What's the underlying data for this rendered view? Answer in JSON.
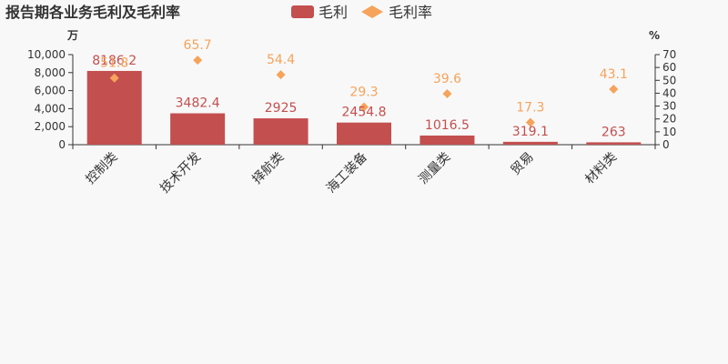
{
  "chart_data": {
    "type": "bar",
    "title": "报告期各业务毛利及毛利率",
    "categories": [
      "控制类",
      "技术开发",
      "择航类",
      "海工装备",
      "测量类",
      "贸易",
      "材料类"
    ],
    "series": [
      {
        "name": "毛利",
        "type": "bar",
        "axis": "left",
        "values": [
          8186.2,
          3482.4,
          2925,
          2454.8,
          1016.5,
          319.1,
          263
        ],
        "labels": [
          "8186.2",
          "3482.4",
          "2925",
          "2454.8",
          "1016.5",
          "319.1",
          "263"
        ],
        "color": "#c44f4f"
      },
      {
        "name": "毛利率",
        "type": "scatter",
        "axis": "right",
        "values": [
          51.8,
          65.7,
          54.4,
          29.3,
          39.6,
          17.3,
          43.1
        ],
        "labels": [
          "51.8",
          "65.7",
          "54.4",
          "29.3",
          "39.6",
          "17.3",
          "43.1"
        ],
        "color": "#f6a35b"
      }
    ],
    "y_left": {
      "unit": "万",
      "ylim": [
        0,
        10000
      ],
      "ticks": [
        0,
        2000,
        4000,
        6000,
        8000,
        10000
      ],
      "tick_labels": [
        "0",
        "2,000",
        "4,000",
        "6,000",
        "8,000",
        "10,000"
      ]
    },
    "y_right": {
      "unit": "%",
      "ylim": [
        0,
        70
      ],
      "ticks": [
        0,
        10,
        20,
        30,
        40,
        50,
        60,
        70
      ],
      "tick_labels": [
        "0",
        "10",
        "20",
        "30",
        "40",
        "50",
        "60",
        "70"
      ]
    },
    "legend_position": "top-center",
    "grid": false
  }
}
